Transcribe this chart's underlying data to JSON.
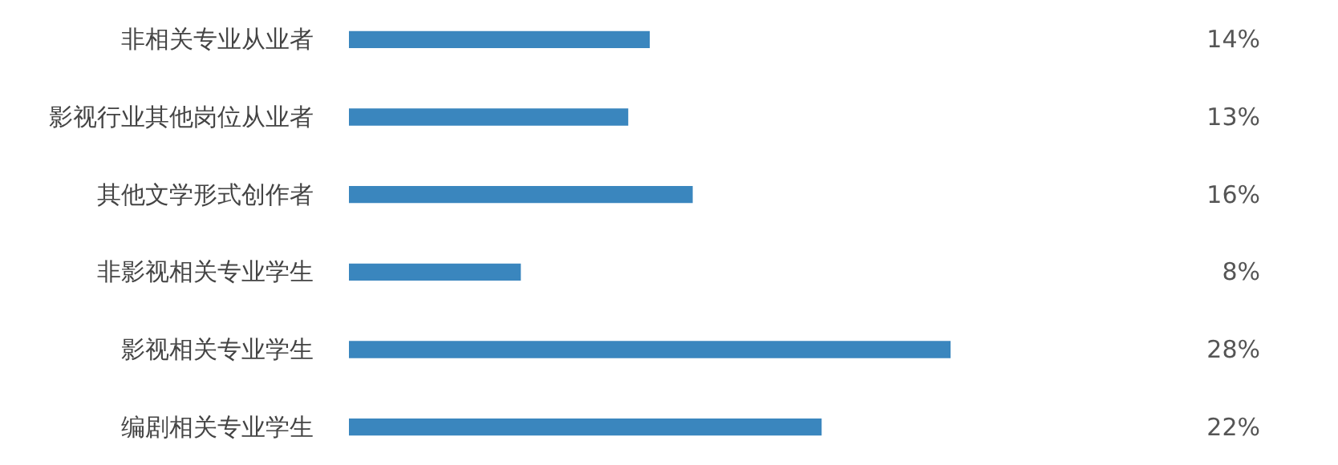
{
  "chart_data": {
    "type": "bar",
    "orientation": "horizontal",
    "categories": [
      "非相关专业从业者",
      "影视行业其他岗位从业者",
      "其他文学形式创作者",
      "非影视相关专业学生",
      "影视相关专业学生",
      "编剧相关专业学生"
    ],
    "values": [
      14,
      13,
      16,
      8,
      28,
      22
    ],
    "value_labels": [
      "14%",
      "13%",
      "16%",
      "8%",
      "28%",
      "22%"
    ],
    "color": "#3a86be"
  }
}
